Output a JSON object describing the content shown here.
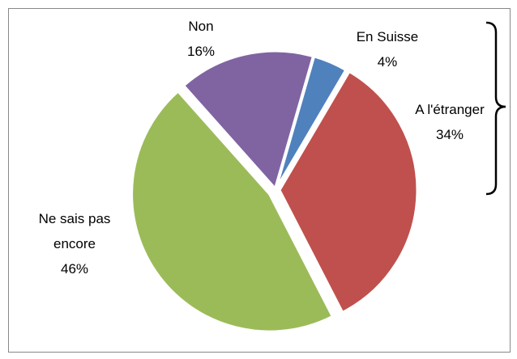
{
  "chart_data": {
    "type": "pie",
    "categories": [
      "En Suisse",
      "A l'étranger",
      "Ne sais pas encore",
      "Non"
    ],
    "values": [
      4,
      34,
      46,
      16
    ],
    "value_labels": [
      "4%",
      "34%",
      "46%",
      "16%"
    ],
    "colors": [
      "#4f81bd",
      "#c0504d",
      "#9bbb59",
      "#8064a2"
    ]
  }
}
